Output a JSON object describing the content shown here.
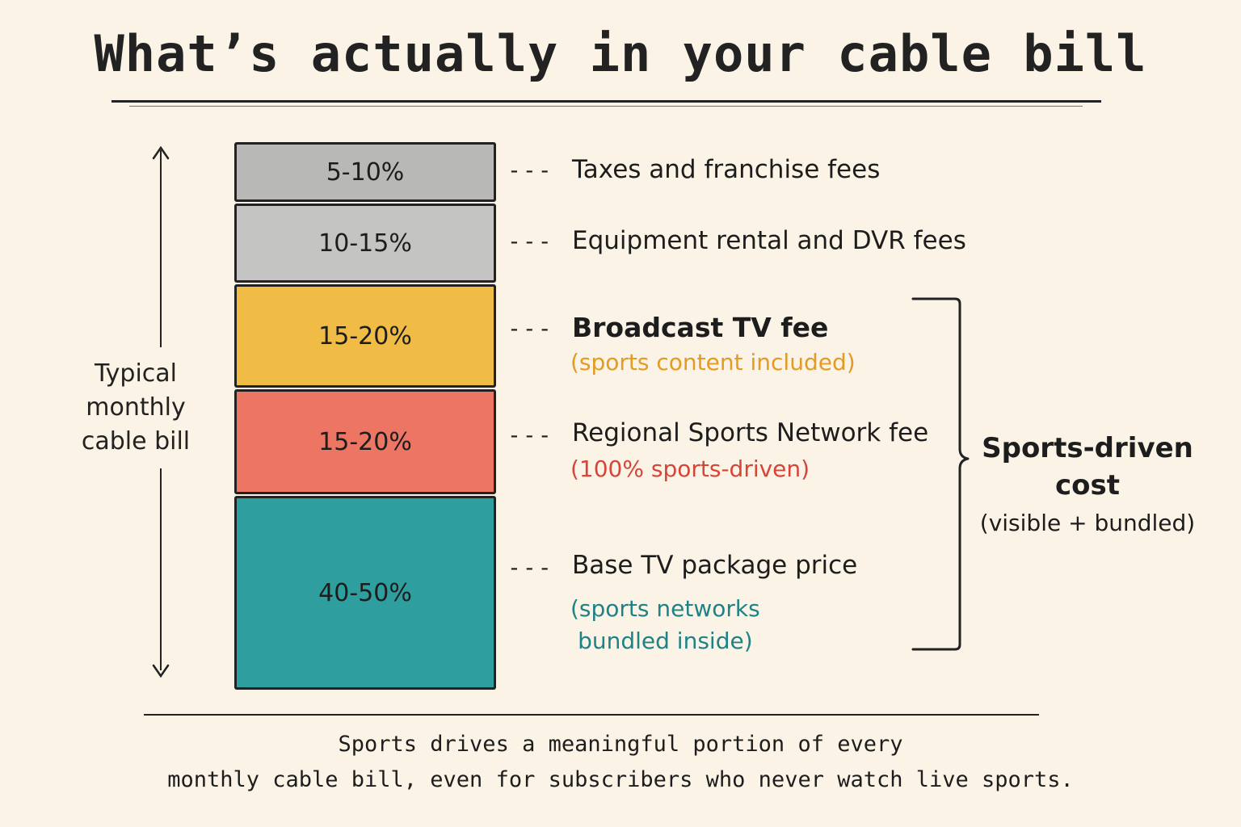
{
  "title": "What’s actually in your cable bill",
  "side_label": {
    "line1": "Typical",
    "line2": "monthly",
    "line3": "cable bill"
  },
  "segments": [
    {
      "pct": "5-10%",
      "label": "Taxes and franchise fees",
      "note": "",
      "color": "#b8b8b6"
    },
    {
      "pct": "10-15%",
      "label": "Equipment rental and DVR fees",
      "note": "",
      "color": "#c4c4c2"
    },
    {
      "pct": "15-20%",
      "label": "Broadcast TV fee",
      "note": "(sports content included)",
      "color": "#f0bc45",
      "note_color": "#e49b24"
    },
    {
      "pct": "15-20%",
      "label": "Regional Sports Network fee",
      "note": "(100% sports-driven)",
      "color": "#ec7564",
      "note_color": "#d64538"
    },
    {
      "pct": "40-50%",
      "label": "Base TV package price",
      "note_line1": "(sports networks",
      "note_line2": "bundled inside)",
      "color": "#2e9f9e",
      "note_color": "#1f8286"
    }
  ],
  "dash_text": "---",
  "bracket": {
    "line1": "Sports-driven",
    "line2": "cost",
    "sub": "(visible + bundled)"
  },
  "footer": {
    "line1": "Sports drives a meaningful portion of every",
    "line2": "monthly cable bill, even for subscribers who never watch live sports."
  }
}
